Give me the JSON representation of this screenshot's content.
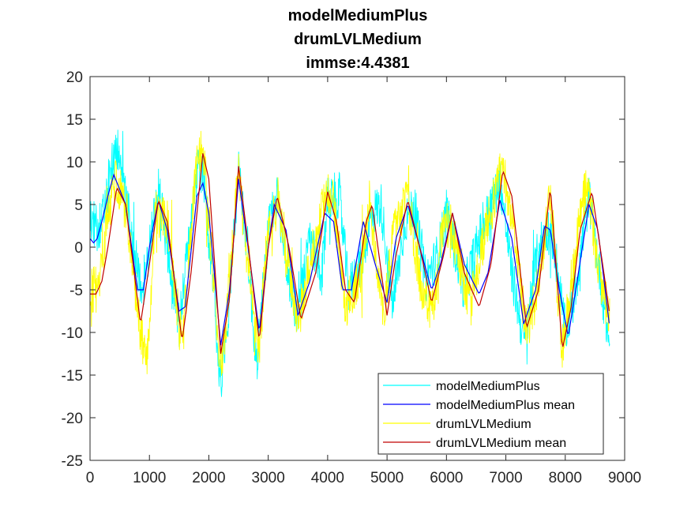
{
  "chart_data": {
    "type": "line",
    "title_lines": [
      "modelMediumPlus",
      "drumLVLMedium",
      "immse:4.4381"
    ],
    "xlabel": "",
    "ylabel": "",
    "xlim": [
      0,
      9000
    ],
    "ylim": [
      -25,
      20
    ],
    "x_ticks": [
      0,
      1000,
      2000,
      3000,
      4000,
      5000,
      6000,
      7000,
      8000,
      9000
    ],
    "y_ticks": [
      -25,
      -20,
      -15,
      -10,
      -5,
      0,
      5,
      10,
      15,
      20
    ],
    "grid": false,
    "legend_position": "bottom-right",
    "series": [
      {
        "name": "modelMediumPlus",
        "color": "#00ffff",
        "noisy": true,
        "x": [
          0,
          120,
          250,
          350,
          450,
          600,
          850,
          1000,
          1150,
          1300,
          1500,
          1800,
          1900,
          2000,
          2200,
          2350,
          2500,
          2650,
          2800,
          3000,
          3150,
          3350,
          3500,
          3700,
          3900,
          4000,
          4200,
          4350,
          4550,
          4750,
          4900,
          5100,
          5300,
          5450,
          5650,
          5850,
          6000,
          6300,
          6550,
          6900,
          7100,
          7300,
          7550,
          7700,
          7800,
          8000,
          8150,
          8400,
          8600,
          8750
        ],
        "y": [
          3.5,
          2,
          4,
          9,
          12,
          6,
          -5,
          0,
          7,
          0,
          -9,
          9,
          9,
          1,
          -16,
          -6,
          9,
          0,
          -14,
          2,
          6,
          -4,
          -8,
          1,
          -4,
          6,
          6,
          -5,
          -2,
          4,
          5,
          -7,
          3,
          5,
          -4,
          -1,
          4,
          -5,
          1,
          8,
          -3,
          -11,
          0,
          2,
          1,
          -10,
          -6,
          6,
          -4,
          -12
        ]
      },
      {
        "name": "modelMediumPlus mean",
        "color": "#0000ff",
        "noisy": false,
        "x": [
          0,
          60,
          120,
          200,
          300,
          400,
          600,
          800,
          900,
          1000,
          1150,
          1300,
          1500,
          1600,
          1800,
          1900,
          2000,
          2200,
          2350,
          2500,
          2700,
          2850,
          3000,
          3100,
          3300,
          3500,
          3700,
          3950,
          4100,
          4250,
          4400,
          4600,
          4800,
          5000,
          5150,
          5350,
          5550,
          5750,
          5900,
          6100,
          6300,
          6550,
          6700,
          6900,
          7100,
          7300,
          7500,
          7650,
          7750,
          7900,
          8050,
          8200,
          8400,
          8550,
          8750
        ],
        "y": [
          1,
          0.5,
          1,
          3,
          6,
          8.5,
          5,
          -5,
          -5,
          0,
          5.5,
          2,
          -7.5,
          -7,
          6,
          7.5,
          4,
          -11.5,
          -5,
          8,
          -2,
          -10,
          0,
          5,
          2,
          -8,
          -4,
          4,
          3,
          -5,
          -5,
          3,
          -2,
          -6.5,
          1,
          5,
          0,
          -5,
          -2,
          4,
          -2,
          -5.5,
          -3,
          5.5,
          1,
          -9,
          -5,
          2.5,
          2,
          -5,
          -10.5,
          -4,
          5,
          2,
          -9.5
        ]
      },
      {
        "name": "drumLVLMedium",
        "color": "#ffff00",
        "noisy": true,
        "x": [
          0,
          150,
          300,
          450,
          600,
          850,
          950,
          1100,
          1300,
          1550,
          1800,
          1900,
          2000,
          2200,
          2300,
          2500,
          2650,
          2850,
          3000,
          3150,
          3300,
          3500,
          3700,
          4000,
          4100,
          4300,
          4550,
          4700,
          4950,
          5100,
          5350,
          5550,
          5750,
          5950,
          6100,
          6400,
          6600,
          6950,
          7150,
          7350,
          7500,
          7750,
          7950,
          8100,
          8300,
          8400,
          8550,
          8750
        ],
        "y": [
          -5,
          -5,
          4,
          8,
          5,
          -10,
          -14,
          4,
          3,
          -12,
          11,
          12,
          3,
          -14,
          -8,
          9,
          -2,
          -12,
          3,
          6,
          0,
          -9,
          -2,
          7,
          5,
          -7,
          -3,
          5,
          -8,
          1,
          6,
          -4,
          -8,
          3,
          2,
          -7,
          0,
          10,
          1,
          -10,
          -6,
          6,
          -12,
          -4,
          6,
          7,
          -3,
          -8
        ]
      },
      {
        "name": "drumLVLMedium mean",
        "color": "#c00000",
        "noisy": false,
        "x": [
          0,
          100,
          200,
          300,
          450,
          600,
          850,
          1000,
          1150,
          1300,
          1550,
          1700,
          1900,
          2000,
          2200,
          2350,
          2500,
          2650,
          2850,
          3000,
          3150,
          3350,
          3550,
          3800,
          4000,
          4150,
          4300,
          4450,
          4650,
          4750,
          5000,
          5150,
          5350,
          5550,
          5750,
          5950,
          6100,
          6300,
          6550,
          6750,
          6950,
          7100,
          7350,
          7550,
          7750,
          7950,
          8100,
          8250,
          8450,
          8650,
          8750
        ],
        "y": [
          -5.5,
          -5.5,
          -4,
          0,
          7,
          5,
          -9,
          -2,
          5.5,
          3,
          -11,
          -3,
          11,
          8,
          -12.5,
          -6,
          9.5,
          1,
          -11,
          0,
          6,
          0,
          -8.5,
          -3,
          6.5,
          3,
          -5,
          -6.5,
          3,
          5,
          -8,
          -1,
          5.5,
          0,
          -6.5,
          -1,
          4,
          -3,
          -7,
          -2,
          9,
          6,
          -9.5,
          -5,
          7,
          -12,
          -7,
          2,
          6.5,
          -3,
          -8
        ]
      }
    ]
  }
}
